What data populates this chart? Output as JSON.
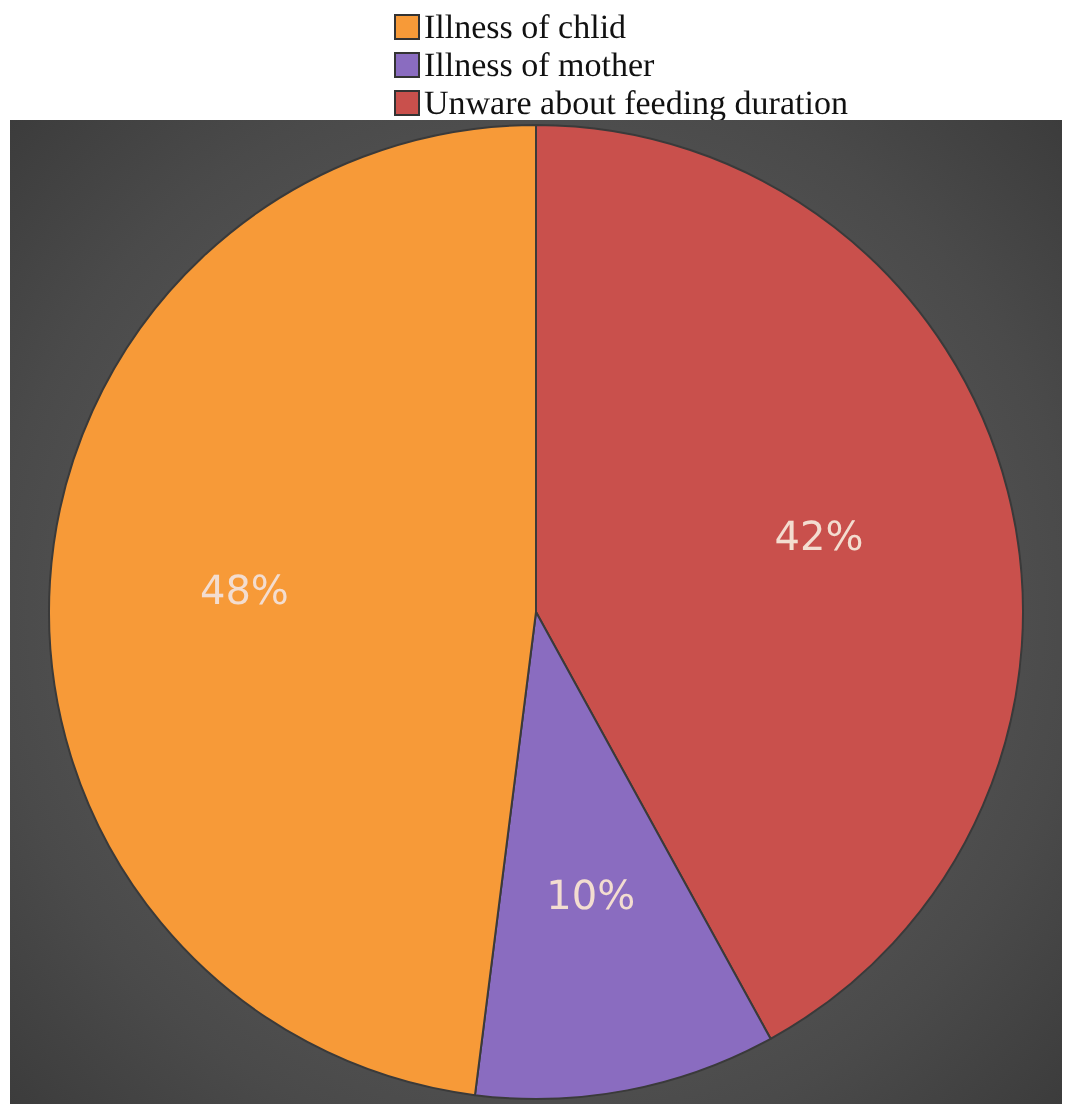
{
  "chart_data": {
    "type": "pie",
    "categories": [
      "Illness of chlid",
      "Illness of mother",
      "Unware about feeding duration"
    ],
    "values": [
      48,
      10,
      42
    ],
    "colors": [
      "#f79a38",
      "#8a6cc0",
      "#c9504c"
    ],
    "value_labels": [
      "48%",
      "10%",
      "42%"
    ],
    "legend": "top"
  }
}
